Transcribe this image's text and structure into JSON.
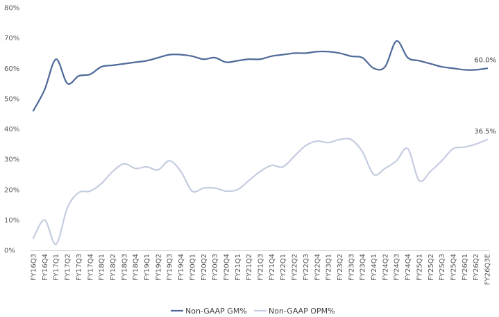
{
  "chart_data": {
    "type": "line",
    "title": "",
    "xlabel": "",
    "ylabel": "",
    "ylim": [
      0,
      80
    ],
    "yticks": [
      "0%",
      "10%",
      "20%",
      "30%",
      "40%",
      "50%",
      "60%",
      "70%",
      "80%"
    ],
    "categories": [
      "FY16Q3",
      "FY16Q4",
      "FY17Q1",
      "FY17Q2",
      "FY17Q3",
      "FY17Q4",
      "FY18Q1",
      "FY18Q2",
      "FY18Q3",
      "FY18Q4",
      "FY19Q1",
      "FY19Q2",
      "FY19Q3",
      "FY19Q4",
      "FY20Q1",
      "FY20Q2",
      "FY20Q3",
      "FY20Q4",
      "FY21Q1",
      "FY21Q2",
      "FY21Q3",
      "FY21Q4",
      "FY22Q1",
      "FY22Q2",
      "FY22Q3",
      "FY22Q4",
      "FY23Q1",
      "FY23Q2",
      "FY23Q3",
      "FY23Q4",
      "FY24Q1",
      "FY24Q2",
      "FY24Q3",
      "FY24Q4",
      "FY25Q1",
      "FY25Q2",
      "FY25Q3",
      "FY25Q4",
      "FY26Q1",
      "FY26Q2",
      "FY26Q3E"
    ],
    "series": [
      {
        "name": "Non-GAAP GM%",
        "color": "#4f6a99",
        "values": [
          46,
          53,
          63,
          55,
          57.5,
          58,
          60.5,
          61,
          61.5,
          62,
          62.5,
          63.5,
          64.5,
          64.5,
          64,
          63,
          63.5,
          62,
          62.5,
          63,
          63,
          64,
          64.5,
          65,
          65,
          65.5,
          65.5,
          65,
          64,
          63.5,
          60,
          60.5,
          69,
          63.5,
          62.5,
          61.5,
          60.5,
          60,
          59.5,
          59.5,
          60
        ]
      },
      {
        "name": "Non-GAAP OPM%",
        "color": "#c5cde0",
        "values": [
          4,
          10,
          2,
          14,
          19,
          19.5,
          22,
          26,
          28.5,
          27,
          27.5,
          26.5,
          29.5,
          26,
          19.5,
          20.5,
          20.5,
          19.5,
          20,
          23,
          26,
          28,
          27.5,
          31,
          34.5,
          36,
          35.5,
          36.5,
          36.5,
          32.5,
          25,
          27,
          29.5,
          33.5,
          23,
          26,
          29.5,
          33.5,
          34,
          35,
          36.5
        ]
      }
    ],
    "end_labels": [
      "60.0%",
      "36.5%"
    ],
    "legend_position": "bottom-center",
    "grid": false
  }
}
